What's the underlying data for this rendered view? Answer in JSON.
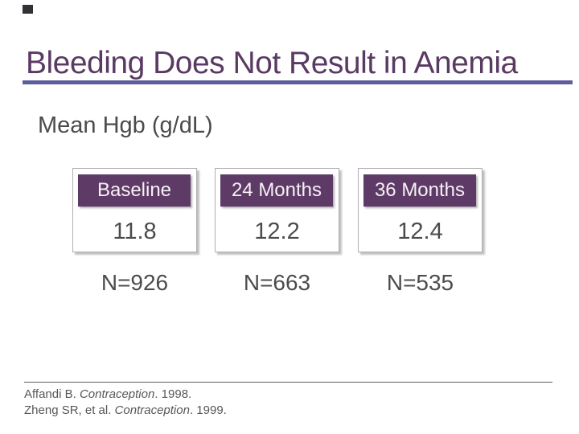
{
  "slide": {
    "title": "Bleeding Does Not Result in Anemia",
    "subtitle": "Mean Hgb (g/dL)"
  },
  "chart_data": {
    "type": "table",
    "title": "Mean Hgb (g/dL)",
    "categories": [
      "Baseline",
      "24 Months",
      "36 Months"
    ],
    "values": [
      11.8,
      12.2,
      12.4
    ],
    "sample_sizes": [
      926,
      663,
      535
    ]
  },
  "table": {
    "columns": [
      {
        "header": "Baseline",
        "value": "11.8",
        "n": "N=926"
      },
      {
        "header": "24 Months",
        "value": "12.2",
        "n": "N=663"
      },
      {
        "header": "36 Months",
        "value": "12.4",
        "n": "N=535"
      }
    ]
  },
  "footer": {
    "citations": [
      {
        "pre": "Affandi B. ",
        "journal": "Contraception",
        "post": ". 1998."
      },
      {
        "pre": "Zheng SR, et al. ",
        "journal": "Contraception",
        "post": ". 1999."
      }
    ]
  },
  "colors": {
    "title_text": "#5a3a63",
    "title_underline": "#5e5e9e",
    "header_box_bg": "#5e3b66",
    "header_box_text": "#f7f1f7",
    "body_text": "#4c4c4c",
    "footer_text": "#57575b",
    "box_border": "#b2adb4",
    "corner_mark": "#333036"
  }
}
